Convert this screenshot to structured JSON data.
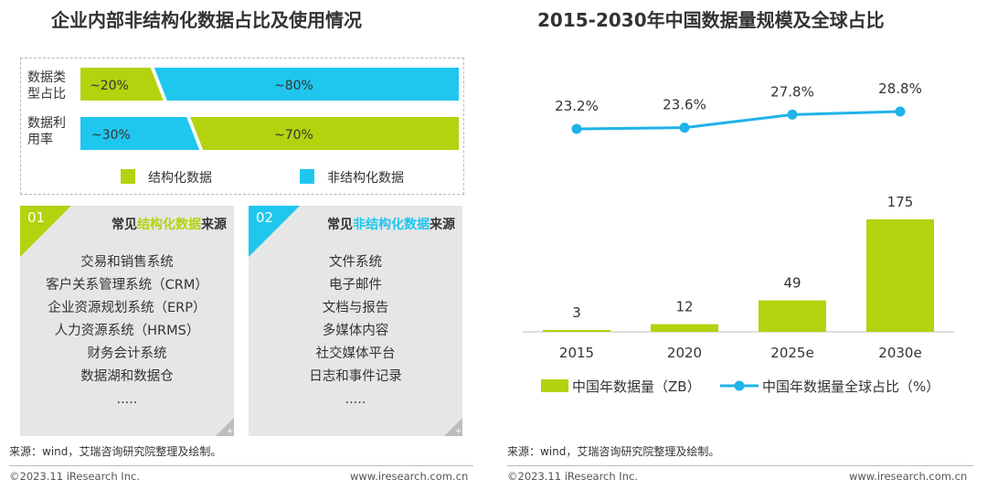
{
  "left": {
    "title": "企业内部非结构化数据占比及使用情况",
    "rows": [
      {
        "label": "数据类型占比",
        "label_line1": "数据类",
        "label_line2": "型占比",
        "structured_pct": 20,
        "unstructured_pct": 80,
        "structured_text": "~20%",
        "unstructured_text": "~80%"
      },
      {
        "label": "数据利用率",
        "label_line1": "数据利",
        "label_line2": "用率",
        "unstructured_pct": 30,
        "structured_pct": 70,
        "unstructured_text": "~30%",
        "structured_text": "~70%"
      }
    ],
    "legend": {
      "structured": "结构化数据",
      "unstructured": "非结构化数据"
    },
    "colors": {
      "structured": "#b5d20f",
      "unstructured": "#1fc7ee"
    },
    "cards": [
      {
        "num": "01",
        "head_pre": "常见",
        "head_hl": "结构化数据",
        "head_post": "来源",
        "items": [
          "交易和销售系统",
          "客户关系管理系统（CRM）",
          "企业资源规划系统（ERP）",
          "人力资源系统（HRMS）",
          "财务会计系统",
          "数据湖和数据仓",
          "....."
        ]
      },
      {
        "num": "02",
        "head_pre": "常见",
        "head_hl": "非结构化数据",
        "head_post": "来源",
        "items": [
          "文件系统",
          "电子邮件",
          "文档与报告",
          "多媒体内容",
          "社交媒体平台",
          "日志和事件记录",
          "....."
        ]
      }
    ],
    "source": "来源：wind，艾瑞咨询研究院整理及绘制。",
    "copyright": "©2023.11 iResearch Inc.",
    "website": "www.iresearch.com.cn"
  },
  "chart_data": {
    "type": "bar",
    "title": "2015-2030年中国数据量规模及全球占比",
    "categories": [
      "2015",
      "2020",
      "2025e",
      "2030e"
    ],
    "series": [
      {
        "name": "中国年数据量（ZB）",
        "kind": "bar",
        "values": [
          3,
          12,
          49,
          175
        ],
        "labels": [
          "3",
          "12",
          "49",
          "175"
        ],
        "color": "#b5d20f"
      },
      {
        "name": "中国年数据量全球占比（%）",
        "kind": "line",
        "values": [
          23.2,
          23.6,
          27.8,
          28.8
        ],
        "labels": [
          "23.2%",
          "23.6%",
          "27.8%",
          "28.8%"
        ],
        "color": "#1fb3e8"
      }
    ],
    "bar_ylim": [
      0,
      175
    ],
    "line_ylim": [
      23.2,
      28.8
    ]
  },
  "right": {
    "source": "来源：wind，艾瑞咨询研究院整理及绘制。",
    "copyright": "©2023.11 iResearch Inc.",
    "website": "www.iresearch.com.cn"
  }
}
